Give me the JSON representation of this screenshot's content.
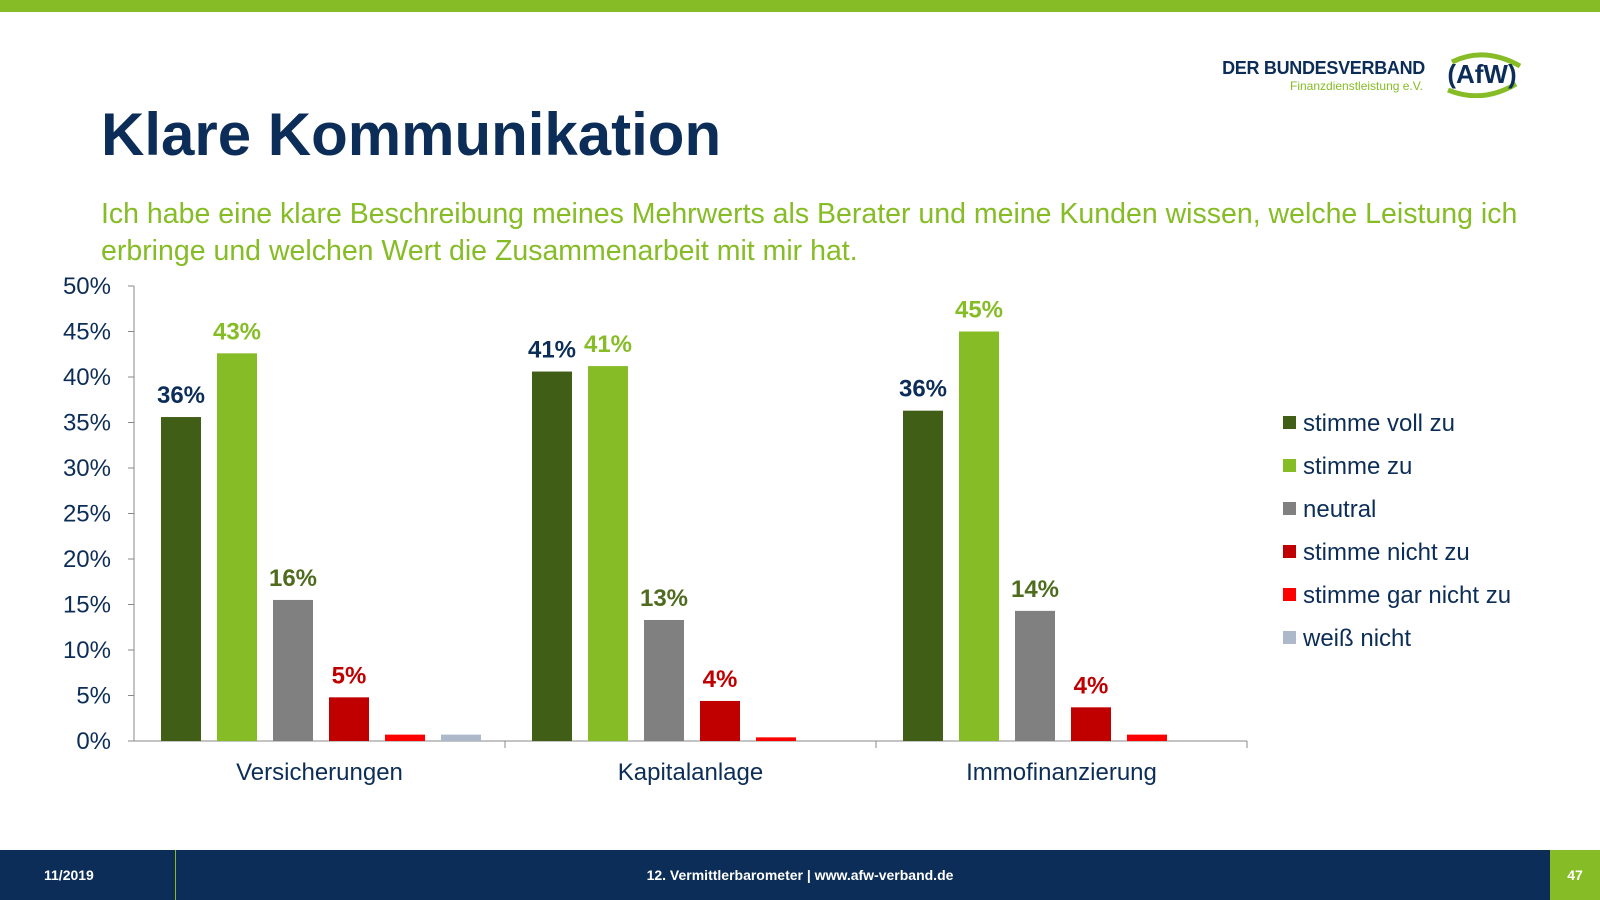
{
  "header": {
    "logo_line1": "DER BUNDESVERBAND",
    "logo_line2": "Finanzdienstleistung e.V.",
    "logo_mark": "AfW",
    "title": "Klare Kommunikation",
    "subtitle": "Ich habe eine klare Beschreibung meines Mehrwerts als Berater und meine Kunden wissen, welche Leistung ich erbringe und welchen Wert die Zusammenarbeit mit mir hat."
  },
  "colors": {
    "brand_green": "#86bc25",
    "brand_navy": "#0c2d57"
  },
  "chart_data": {
    "type": "bar",
    "categories": [
      "Versicherungen",
      "Kapitalanlage",
      "Immofinanzierung"
    ],
    "ylim": [
      0,
      50
    ],
    "yticks": [
      "0%",
      "5%",
      "10%",
      "15%",
      "20%",
      "25%",
      "30%",
      "35%",
      "40%",
      "45%",
      "50%"
    ],
    "legend_position": "right",
    "grid": false,
    "series": [
      {
        "name": "stimme voll zu",
        "color": "#415e16",
        "label_color": "#0c2d57",
        "values": [
          35.6,
          40.6,
          36.3
        ],
        "labels": [
          "36%",
          "41%",
          "36%"
        ]
      },
      {
        "name": "stimme zu",
        "color": "#86bc25",
        "label_color": "#86bc25",
        "values": [
          42.6,
          41.2,
          45.0
        ],
        "labels": [
          "43%",
          "41%",
          "45%"
        ]
      },
      {
        "name": "neutral",
        "color": "#808080",
        "label_color": "#4f6b1e",
        "values": [
          15.5,
          13.3,
          14.3
        ],
        "labels": [
          "16%",
          "13%",
          "14%"
        ]
      },
      {
        "name": "stimme nicht zu",
        "color": "#c00000",
        "label_color": "#c00000",
        "values": [
          4.8,
          4.4,
          3.7
        ],
        "labels": [
          "5%",
          "4%",
          "4%"
        ]
      },
      {
        "name": "stimme gar nicht zu",
        "color": "#ff0000",
        "label_color": "#ff0000",
        "values": [
          0.7,
          0.4,
          0.7
        ],
        "labels": [
          "",
          "",
          ""
        ]
      },
      {
        "name": "weiß nicht",
        "color": "#adb9ca",
        "label_color": "#adb9ca",
        "values": [
          0.7,
          0,
          0
        ],
        "labels": [
          "",
          "",
          ""
        ]
      }
    ]
  },
  "footer": {
    "date": "11/2019",
    "center": "12. Vermittlerbarometer | www.afw-verband.de",
    "page": "47"
  }
}
